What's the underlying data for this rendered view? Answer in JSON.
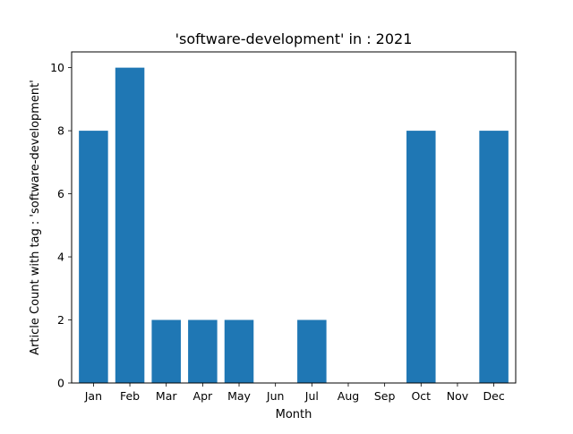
{
  "chart_data": {
    "type": "bar",
    "title": "'software-development' in : 2021",
    "xlabel": "Month",
    "ylabel": "Article Count with tag : 'software-development'",
    "categories": [
      "Jan",
      "Feb",
      "Mar",
      "Apr",
      "May",
      "Jun",
      "Jul",
      "Aug",
      "Sep",
      "Oct",
      "Nov",
      "Dec"
    ],
    "values": [
      8,
      10,
      2,
      2,
      2,
      0,
      2,
      0,
      0,
      8,
      0,
      8
    ],
    "ylim": [
      0,
      10.5
    ],
    "yticks": [
      0,
      2,
      4,
      6,
      8,
      10
    ],
    "grid": false,
    "bar_color": "#1f77b4"
  }
}
